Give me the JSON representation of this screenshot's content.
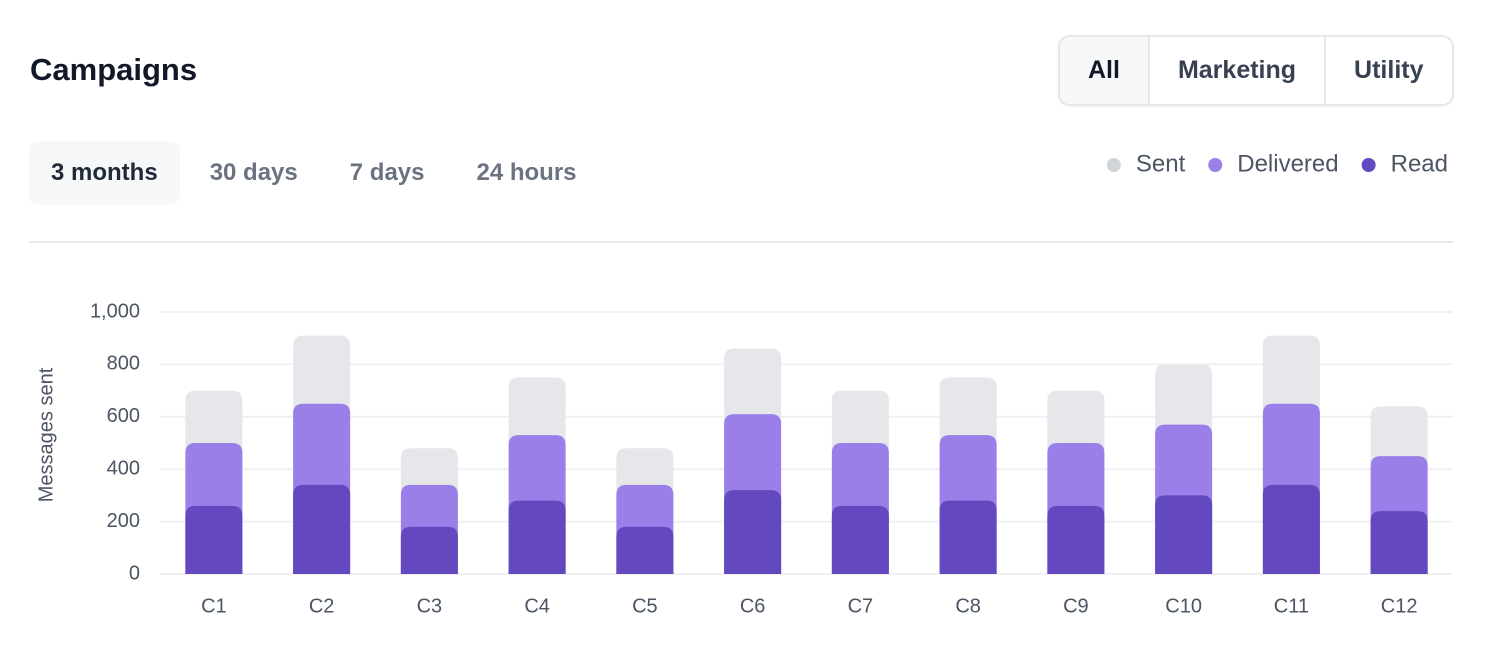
{
  "header": {
    "title": "Campaigns"
  },
  "filters": [
    "All",
    "Marketing",
    "Utility"
  ],
  "time_tabs": [
    "3 months",
    "30 days",
    "7 days",
    "24 hours"
  ],
  "chart_data": {
    "type": "bar",
    "y_label": "Messages sent",
    "categories": [
      "C1",
      "C2",
      "C3",
      "C4",
      "C5",
      "C6",
      "C7",
      "C8",
      "C9",
      "C10",
      "C11",
      "C12"
    ],
    "series": [
      {
        "name": "Sent",
        "color": "#e5e7eb",
        "values": [
          700,
          910,
          480,
          750,
          480,
          860,
          700,
          750,
          700,
          800,
          910,
          640
        ]
      },
      {
        "name": "Delivered",
        "color": "#9b7fe8",
        "values": [
          500,
          650,
          340,
          530,
          340,
          610,
          500,
          530,
          500,
          570,
          650,
          450
        ]
      },
      {
        "name": "Read",
        "color": "#6448c0",
        "values": [
          260,
          340,
          180,
          280,
          180,
          320,
          260,
          280,
          260,
          300,
          340,
          240
        ]
      }
    ],
    "ylim": [
      0,
      1000
    ],
    "yticks": [
      0,
      200,
      400,
      600,
      800,
      {
        "value": 1000,
        "label": "1,000"
      }
    ],
    "grid": true,
    "legend": "top-right"
  }
}
